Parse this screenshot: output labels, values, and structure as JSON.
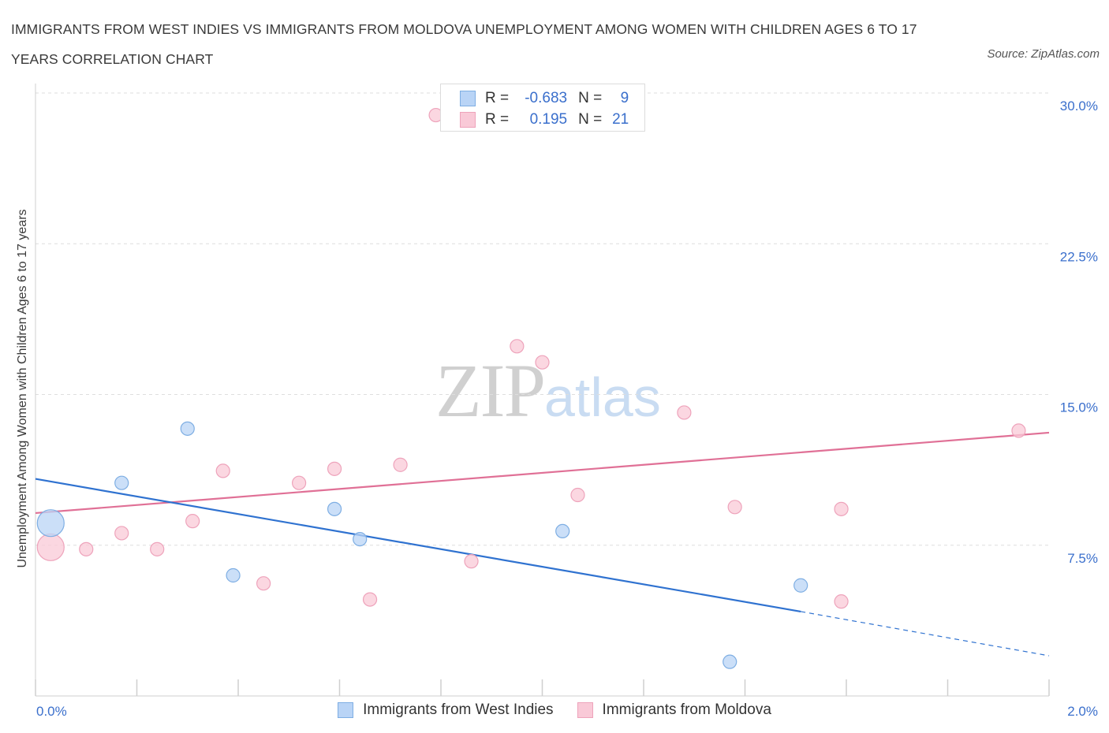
{
  "title": "IMMIGRANTS FROM WEST INDIES VS IMMIGRANTS FROM MOLDOVA UNEMPLOYMENT AMONG WOMEN WITH CHILDREN AGES 6 TO 17 YEARS CORRELATION CHART",
  "source": "Source: ZipAtlas.com",
  "watermark": {
    "zip": "ZIP",
    "atlas": "atlas"
  },
  "legend": {
    "r_label": "R =",
    "n_label": "N =",
    "rows": [
      {
        "r": "-0.683",
        "n": "9"
      },
      {
        "r": "0.195",
        "n": "21"
      }
    ]
  },
  "colors": {
    "west_indies_fill": "#b9d4f6",
    "west_indies_stroke": "#7eaee3",
    "west_indies_line": "#2f72d0",
    "moldova_fill": "#f9c9d7",
    "moldova_stroke": "#eea3bb",
    "moldova_line": "#e07096",
    "tick_label": "#3a6fcc",
    "grid": "#dedede"
  },
  "chart_data": {
    "type": "scatter",
    "title": "IMMIGRANTS FROM WEST INDIES VS IMMIGRANTS FROM MOLDOVA UNEMPLOYMENT AMONG WOMEN WITH CHILDREN AGES 6 TO 17 YEARS CORRELATION CHART",
    "xlabel": "",
    "ylabel": "Unemployment Among Women with Children Ages 6 to 17 years",
    "xlim": [
      0,
      2.0
    ],
    "ylim": [
      0,
      30.0
    ],
    "x_tick_labels": [
      {
        "value": 0.0,
        "label": "0.0%"
      },
      {
        "value": 2.0,
        "label": "2.0%"
      }
    ],
    "y_tick_labels": [
      {
        "value": 7.5,
        "label": "7.5%"
      },
      {
        "value": 15.0,
        "label": "15.0%"
      },
      {
        "value": 22.5,
        "label": "22.5%"
      },
      {
        "value": 30.0,
        "label": "30.0%"
      }
    ],
    "grid": "horizontal dashed",
    "series": [
      {
        "name": "Immigrants from West Indies",
        "points": [
          {
            "x": 0.03,
            "y": 8.6,
            "size": "large"
          },
          {
            "x": 0.17,
            "y": 10.6
          },
          {
            "x": 0.3,
            "y": 13.3
          },
          {
            "x": 0.39,
            "y": 6.0
          },
          {
            "x": 0.59,
            "y": 9.3
          },
          {
            "x": 0.64,
            "y": 7.8
          },
          {
            "x": 1.04,
            "y": 8.2
          },
          {
            "x": 1.37,
            "y": 1.7
          },
          {
            "x": 1.51,
            "y": 5.5
          }
        ],
        "trend": {
          "x": [
            0.0,
            1.51,
            2.0
          ],
          "y": [
            10.8,
            4.2,
            2.0
          ],
          "dashed_after_x": 1.51
        }
      },
      {
        "name": "Immigrants from Moldova",
        "points": [
          {
            "x": 0.03,
            "y": 7.4,
            "size": "large"
          },
          {
            "x": 0.1,
            "y": 7.3
          },
          {
            "x": 0.17,
            "y": 8.1
          },
          {
            "x": 0.24,
            "y": 7.3
          },
          {
            "x": 0.31,
            "y": 8.7
          },
          {
            "x": 0.37,
            "y": 11.2
          },
          {
            "x": 0.45,
            "y": 5.6
          },
          {
            "x": 0.52,
            "y": 10.6
          },
          {
            "x": 0.59,
            "y": 11.3
          },
          {
            "x": 0.66,
            "y": 4.8
          },
          {
            "x": 0.72,
            "y": 11.5
          },
          {
            "x": 0.79,
            "y": 28.9
          },
          {
            "x": 0.86,
            "y": 6.7
          },
          {
            "x": 0.95,
            "y": 17.4
          },
          {
            "x": 1.0,
            "y": 16.6
          },
          {
            "x": 1.07,
            "y": 10.0
          },
          {
            "x": 1.28,
            "y": 14.1
          },
          {
            "x": 1.38,
            "y": 9.4
          },
          {
            "x": 1.59,
            "y": 4.7
          },
          {
            "x": 1.59,
            "y": 9.3
          },
          {
            "x": 1.94,
            "y": 13.2
          }
        ],
        "trend": {
          "x": [
            0.0,
            2.0
          ],
          "y": [
            9.1,
            13.1
          ]
        }
      }
    ]
  }
}
